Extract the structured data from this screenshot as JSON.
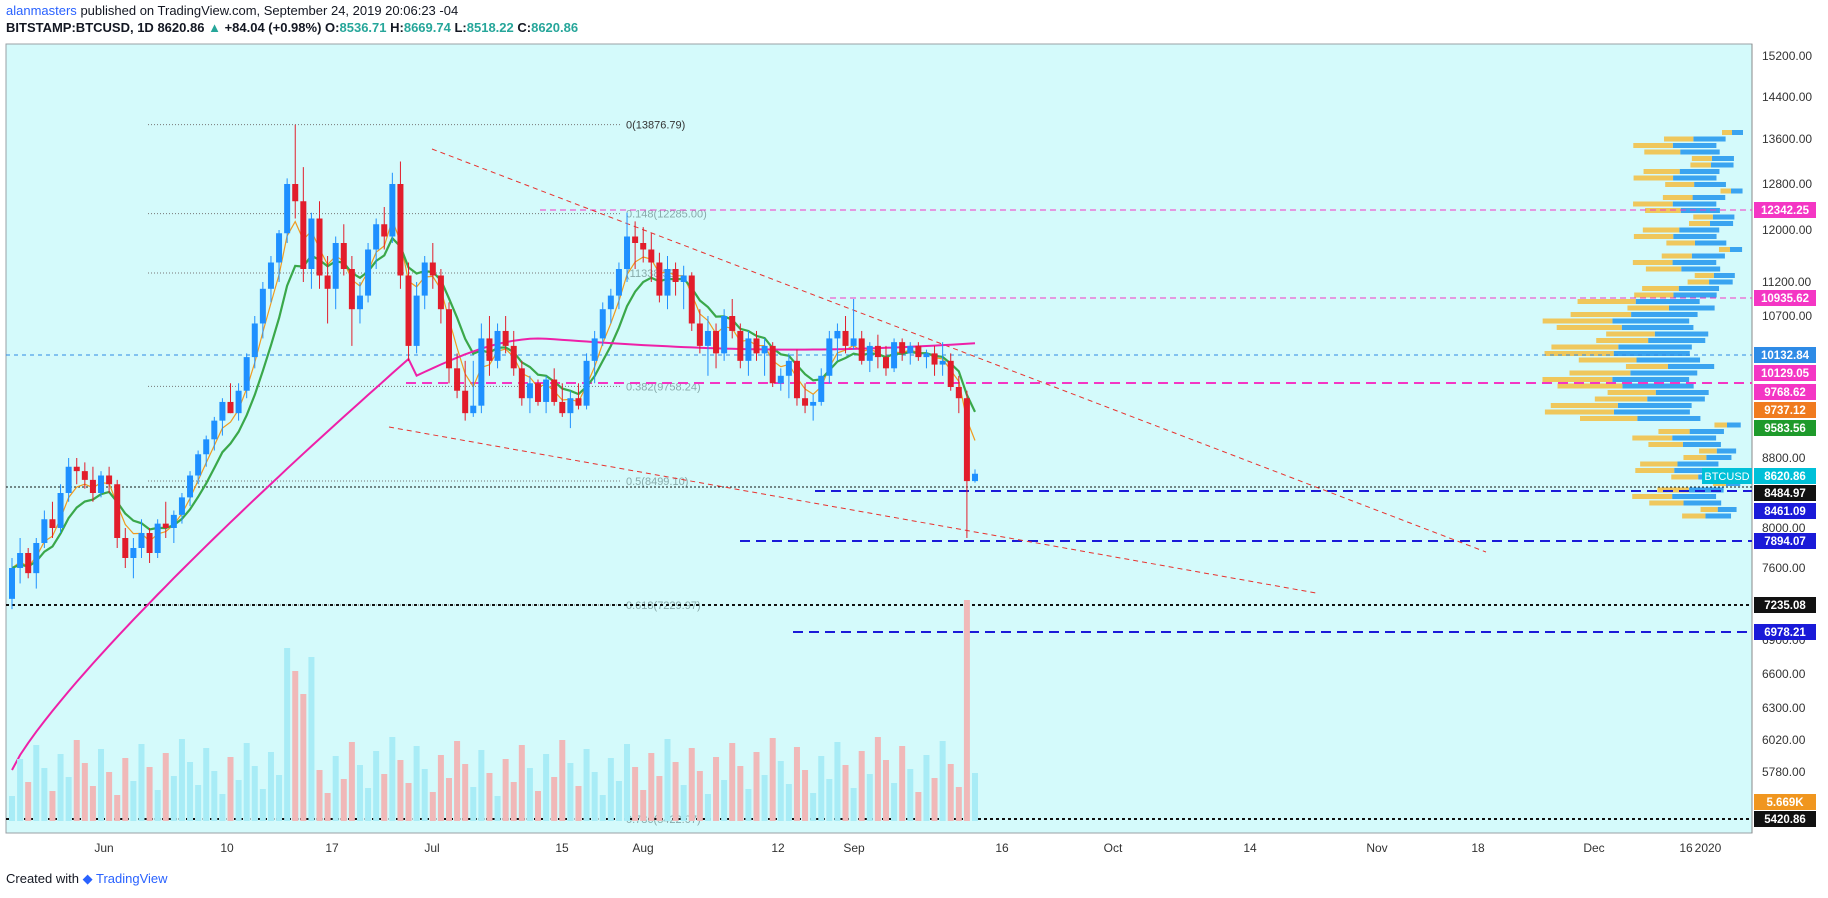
{
  "header": {
    "author": "alanmasters",
    "published_text": "published on TradingView.com, September 24, 2019 20:06:23 -04",
    "symbol": "BITSTAMP:BTCUSD, 1D",
    "last": "8620.86",
    "change": "+84.04 (+0.98%)",
    "open_label": "O:",
    "open": "8536.71",
    "high_label": "H:",
    "high": "8669.74",
    "low_label": "L:",
    "low": "8518.22",
    "close_label": "C:",
    "close": "8620.86"
  },
  "footer": {
    "created_with": "Created with",
    "brand": "TradingView"
  },
  "colors": {
    "background": "#d4fafb",
    "bull": "#1e90ff",
    "bear": "#e21d2b",
    "ema_fast": "#f09b1f",
    "ema_slow": "#3aa84a",
    "ma_long": "#ee20a8",
    "fib": "#777777",
    "magenta_level": "#f436c4",
    "blue_level": "#1a1ad8",
    "trend": "#e8322e"
  },
  "chart_data": {
    "type": "candlestick",
    "instrument": "BITSTAMP:BTCUSD",
    "y_axis": {
      "ticks": [
        "15200.00",
        "14400.00",
        "13600.00",
        "12800.00",
        "12000.00",
        "11200.00",
        "10700.00",
        "8800.00",
        "8000.00",
        "7600.00",
        "6900.00",
        "6600.00",
        "6300.00",
        "6020.00",
        "5780.00"
      ],
      "scale": "log"
    },
    "x_axis": {
      "ticks": [
        "Jun",
        "10",
        "17",
        "Jul",
        "15",
        "Aug",
        "12",
        "Sep",
        "16",
        "Oct",
        "14",
        "Nov",
        "18",
        "Dec",
        "16",
        "2020"
      ]
    },
    "price_labels": [
      {
        "value": "12342.25",
        "color": "#f436c4"
      },
      {
        "value": "10935.62",
        "color": "#f436c4"
      },
      {
        "value": "10132.84",
        "color": "#2e8be6"
      },
      {
        "value": "10129.05",
        "color": "#f436c4"
      },
      {
        "value": "9768.62",
        "color": "#f436c4"
      },
      {
        "value": "9737.12",
        "color": "#f07b1f"
      },
      {
        "value": "9583.56",
        "color": "#1e9a2b"
      },
      {
        "value": "8620.86",
        "color": "#00c0d8"
      },
      {
        "value": "8484.97",
        "color": "#111111"
      },
      {
        "value": "8461.09",
        "color": "#1a1ad8"
      },
      {
        "value": "7894.07",
        "color": "#1a1ad8"
      },
      {
        "value": "7235.08",
        "color": "#111111"
      },
      {
        "value": "6978.21",
        "color": "#1a1ad8"
      },
      {
        "value": "5.669K",
        "color": "#f0961f"
      },
      {
        "value": "5420.86",
        "color": "#111111"
      }
    ],
    "symbol_tag": "BTCUSD",
    "fib_levels": [
      {
        "ratio": "0",
        "label": "0(13876.79)",
        "price": 13876.79
      },
      {
        "ratio": "0.148",
        "label": "0.148(12285.00)",
        "price": 12285.0
      },
      {
        "ratio": "0.236",
        "label": "(11338.53)",
        "price": 11338.53
      },
      {
        "ratio": "0.382",
        "label": "0.382(9758.24)",
        "price": 9758.24
      },
      {
        "ratio": "0.5",
        "label": "0.5(8499.10)",
        "price": 8499.1
      },
      {
        "ratio": "0.618",
        "label": "0.618(7229.97)",
        "price": 7229.97
      },
      {
        "ratio": "0.786",
        "label": "0.786(5422.07)",
        "price": 5422.07
      }
    ],
    "horizontal_levels": [
      12342.25,
      10935.62,
      10132.84,
      9768.62,
      8484.97,
      7894.07,
      7235.08,
      6978.21,
      5420.86
    ],
    "candles": [
      [
        7300,
        7700,
        7200,
        7600
      ],
      [
        7600,
        7900,
        7450,
        7750
      ],
      [
        7750,
        7800,
        7500,
        7550
      ],
      [
        7550,
        7900,
        7400,
        7850
      ],
      [
        7850,
        8200,
        7800,
        8100
      ],
      [
        8100,
        8300,
        7900,
        8000
      ],
      [
        8000,
        8500,
        7950,
        8400
      ],
      [
        8400,
        8800,
        8300,
        8700
      ],
      [
        8700,
        8800,
        8500,
        8650
      ],
      [
        8650,
        8750,
        8450,
        8550
      ],
      [
        8550,
        8700,
        8300,
        8400
      ],
      [
        8400,
        8650,
        8350,
        8600
      ],
      [
        8600,
        8700,
        8400,
        8500
      ],
      [
        8500,
        8550,
        7800,
        7900
      ],
      [
        7900,
        8000,
        7600,
        7700
      ],
      [
        7700,
        7900,
        7500,
        7800
      ],
      [
        7800,
        8100,
        7700,
        7950
      ],
      [
        7950,
        8000,
        7650,
        7750
      ],
      [
        7750,
        8100,
        7700,
        8050
      ],
      [
        8050,
        8300,
        7900,
        8000
      ],
      [
        8000,
        8200,
        7850,
        8150
      ],
      [
        8150,
        8400,
        8050,
        8350
      ],
      [
        8350,
        8650,
        8250,
        8600
      ],
      [
        8600,
        8900,
        8500,
        8850
      ],
      [
        8850,
        9100,
        8700,
        9050
      ],
      [
        9050,
        9350,
        8900,
        9300
      ],
      [
        9300,
        9600,
        9100,
        9550
      ],
      [
        9550,
        9800,
        9400,
        9400
      ],
      [
        9400,
        9800,
        9300,
        9700
      ],
      [
        9700,
        10200,
        9600,
        10150
      ],
      [
        10150,
        10700,
        10000,
        10600
      ],
      [
        10600,
        11200,
        10400,
        11100
      ],
      [
        11100,
        11600,
        10900,
        11500
      ],
      [
        11500,
        12000,
        11200,
        11950
      ],
      [
        11950,
        12900,
        11800,
        12800
      ],
      [
        12800,
        13876,
        12200,
        12500
      ],
      [
        12500,
        13100,
        11200,
        11400
      ],
      [
        11400,
        12300,
        11100,
        12200
      ],
      [
        12200,
        12500,
        11100,
        11300
      ],
      [
        11300,
        11600,
        10600,
        11100
      ],
      [
        11100,
        11900,
        10800,
        11800
      ],
      [
        11800,
        12100,
        11300,
        11400
      ],
      [
        11400,
        11600,
        10300,
        10800
      ],
      [
        10800,
        11200,
        10600,
        11000
      ],
      [
        11000,
        11800,
        10900,
        11700
      ],
      [
        11700,
        12200,
        11400,
        12100
      ],
      [
        12100,
        12400,
        11700,
        11900
      ],
      [
        11900,
        13000,
        11800,
        12800
      ],
      [
        12800,
        13200,
        11100,
        11300
      ],
      [
        11300,
        11500,
        10100,
        10300
      ],
      [
        10300,
        11200,
        10200,
        11000
      ],
      [
        11000,
        11600,
        10800,
        11500
      ],
      [
        11500,
        11800,
        11100,
        11300
      ],
      [
        11300,
        11400,
        10600,
        10800
      ],
      [
        10800,
        10900,
        9800,
        10000
      ],
      [
        10000,
        10200,
        9600,
        9700
      ],
      [
        9700,
        10100,
        9300,
        9400
      ],
      [
        9400,
        10100,
        9350,
        9500
      ],
      [
        9500,
        10600,
        9400,
        10400
      ],
      [
        10400,
        10700,
        9900,
        10100
      ],
      [
        10100,
        10600,
        10000,
        10500
      ],
      [
        10500,
        10700,
        10200,
        10300
      ],
      [
        10300,
        10500,
        9900,
        10000
      ],
      [
        10000,
        10100,
        9500,
        9600
      ],
      [
        9600,
        9900,
        9400,
        9800
      ],
      [
        9800,
        9850,
        9500,
        9550
      ],
      [
        9550,
        9900,
        9400,
        9850
      ],
      [
        9850,
        10000,
        9500,
        9550
      ],
      [
        9550,
        9800,
        9350,
        9400
      ],
      [
        9400,
        9700,
        9200,
        9600
      ],
      [
        9600,
        9800,
        9450,
        9500
      ],
      [
        9500,
        10200,
        9450,
        10100
      ],
      [
        10100,
        10500,
        9800,
        10400
      ],
      [
        10400,
        10900,
        10300,
        10800
      ],
      [
        10800,
        11100,
        10600,
        11000
      ],
      [
        11000,
        11500,
        10800,
        11400
      ],
      [
        11400,
        12300,
        11200,
        11900
      ],
      [
        11900,
        12150,
        11400,
        11800
      ],
      [
        11800,
        12050,
        11500,
        11700
      ],
      [
        11700,
        11950,
        11200,
        11500
      ],
      [
        11500,
        11650,
        10900,
        11000
      ],
      [
        11000,
        11600,
        10800,
        11400
      ],
      [
        11400,
        11500,
        11000,
        11200
      ],
      [
        11200,
        11450,
        10800,
        11300
      ],
      [
        11300,
        11350,
        10500,
        10600
      ],
      [
        10600,
        10800,
        10200,
        10300
      ],
      [
        10300,
        10700,
        9900,
        10500
      ],
      [
        10500,
        10600,
        10000,
        10200
      ],
      [
        10200,
        10800,
        10100,
        10700
      ],
      [
        10700,
        10950,
        10400,
        10500
      ],
      [
        10500,
        10600,
        10000,
        10100
      ],
      [
        10100,
        10500,
        9900,
        10400
      ],
      [
        10400,
        10500,
        10100,
        10200
      ],
      [
        10200,
        10400,
        9900,
        10300
      ],
      [
        10300,
        10350,
        9750,
        9800
      ],
      [
        9800,
        10000,
        9700,
        9900
      ],
      [
        9900,
        10200,
        9600,
        10100
      ],
      [
        10100,
        10250,
        9500,
        9600
      ],
      [
        9600,
        9800,
        9400,
        9500
      ],
      [
        9500,
        9650,
        9300,
        9550
      ],
      [
        9550,
        10000,
        9500,
        9900
      ],
      [
        9900,
        10500,
        9800,
        10400
      ],
      [
        10400,
        10600,
        10100,
        10500
      ],
      [
        10500,
        10700,
        10200,
        10300
      ],
      [
        10300,
        10950,
        10250,
        10400
      ],
      [
        10400,
        10500,
        10050,
        10100
      ],
      [
        10100,
        10350,
        9950,
        10300
      ],
      [
        10300,
        10450,
        10000,
        10150
      ],
      [
        10150,
        10300,
        9900,
        10000
      ],
      [
        10000,
        10400,
        9950,
        10350
      ],
      [
        10350,
        10400,
        10100,
        10200
      ],
      [
        10200,
        10350,
        10050,
        10300
      ],
      [
        10300,
        10350,
        10100,
        10150
      ],
      [
        10150,
        10250,
        10000,
        10200
      ],
      [
        10200,
        10300,
        9900,
        10050
      ],
      [
        10050,
        10350,
        9900,
        10100
      ],
      [
        10100,
        10200,
        9700,
        9750
      ],
      [
        9750,
        9900,
        9400,
        9600
      ],
      [
        9600,
        9700,
        7900,
        8536
      ],
      [
        8536,
        8670,
        8518,
        8620
      ]
    ],
    "volume_relative": "bars scaled 0-1 within bottom pane"
  }
}
